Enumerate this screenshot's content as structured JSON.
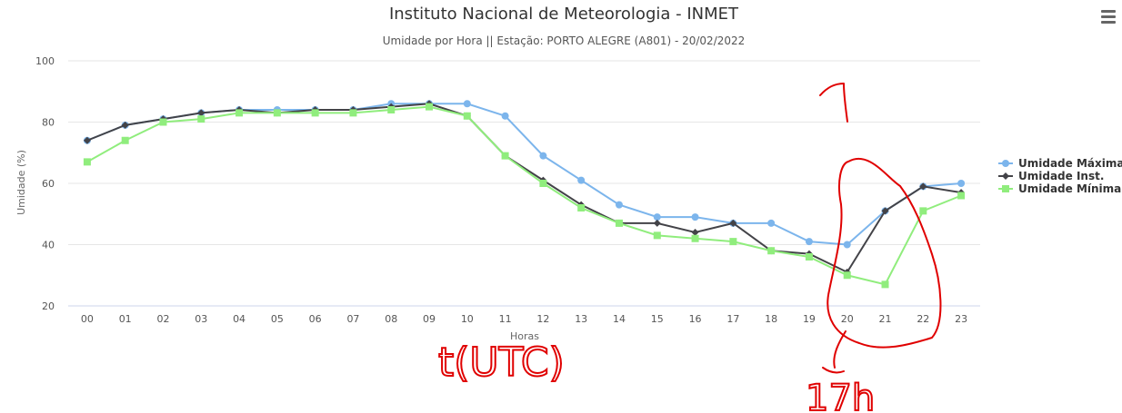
{
  "chart_data": {
    "type": "line",
    "title": "Instituto Nacional de Meteorologia - INMET",
    "subtitle": "Umidade por Hora || Estação: PORTO ALEGRE (A801) - 20/02/2022",
    "xlabel": "Horas",
    "ylabel": "Umidade (%)",
    "ylim": [
      20,
      100
    ],
    "yticks": [
      "20",
      "40",
      "60",
      "80",
      "100"
    ],
    "categories": [
      "00",
      "01",
      "02",
      "03",
      "04",
      "05",
      "06",
      "07",
      "08",
      "09",
      "10",
      "11",
      "12",
      "13",
      "14",
      "15",
      "16",
      "17",
      "18",
      "19",
      "20",
      "21",
      "22",
      "23"
    ],
    "legend_position": "right",
    "series": [
      {
        "name": "Umidade Máxima",
        "color": "#7cb5ec",
        "marker": "circle",
        "values": [
          74,
          79,
          81,
          83,
          84,
          84,
          84,
          84,
          86,
          86,
          86,
          82,
          69,
          61,
          53,
          49,
          49,
          47,
          47,
          41,
          40,
          51,
          59,
          60
        ]
      },
      {
        "name": "Umidade Inst.",
        "color": "#434348",
        "marker": "diamond",
        "values": [
          74,
          79,
          81,
          83,
          84,
          83,
          84,
          84,
          85,
          86,
          82,
          69,
          61,
          53,
          47,
          47,
          44,
          47,
          38,
          37,
          31,
          51,
          59,
          57
        ]
      },
      {
        "name": "Umidade Mínima",
        "color": "#90ed7d",
        "marker": "square",
        "values": [
          67,
          74,
          80,
          81,
          83,
          83,
          83,
          83,
          84,
          85,
          82,
          69,
          60,
          52,
          47,
          43,
          42,
          41,
          38,
          36,
          30,
          27,
          51,
          56
        ]
      }
    ]
  },
  "annotations": {
    "handwritten_utc_label": "t(UTC)",
    "handwritten_local_time": "17h",
    "handwritten_mark": "1",
    "color": "#e00000"
  },
  "icons": {
    "menu": "hamburger-menu-icon"
  }
}
